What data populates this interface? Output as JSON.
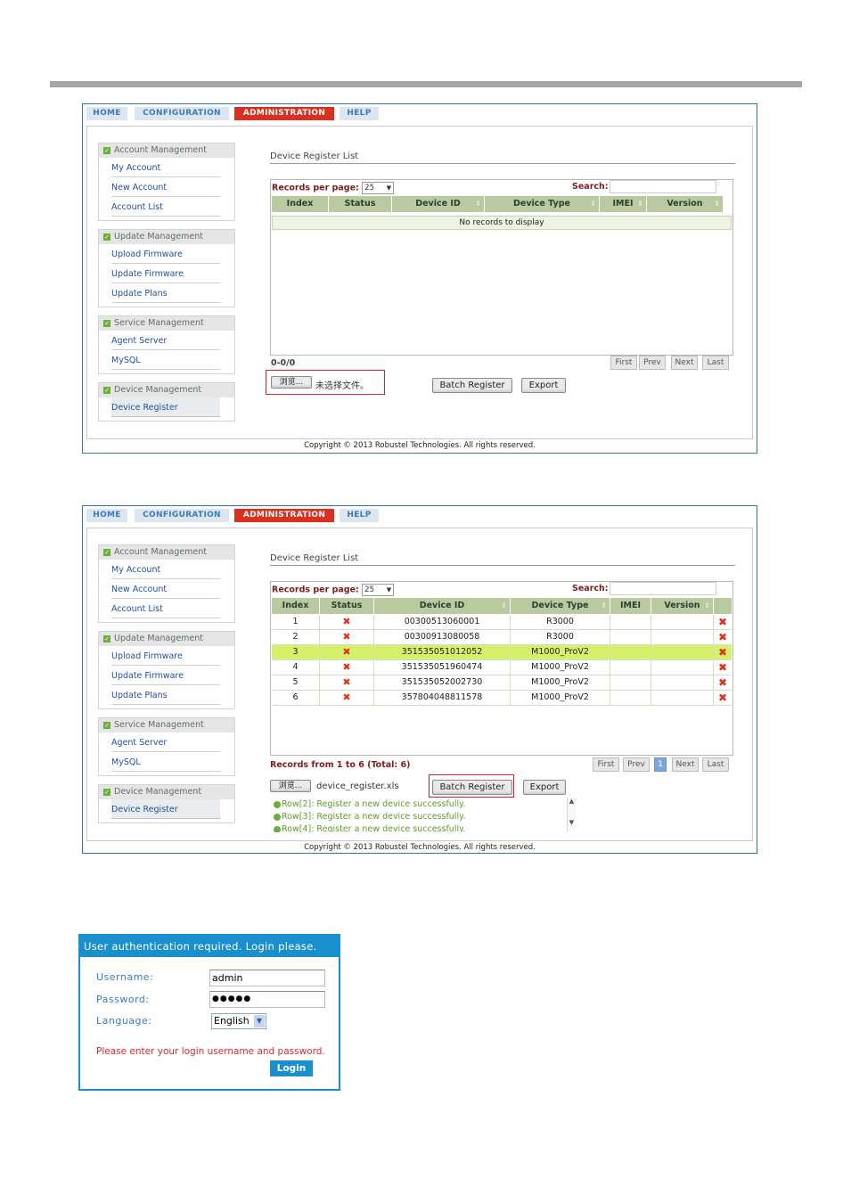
{
  "nav": {
    "home": "HOME",
    "configuration": "CONFIGURATION",
    "administration": "ADMINISTRATION",
    "help": "HELP"
  },
  "sidebar": {
    "account": {
      "title": "Account Management",
      "items": [
        "My Account",
        "New Account",
        "Account List"
      ]
    },
    "update": {
      "title": "Update Management",
      "items": [
        "Upload Firmware",
        "Update Firmware",
        "Update Plans"
      ]
    },
    "service": {
      "title": "Service Management",
      "items": [
        "Agent Server",
        "MySQL"
      ]
    },
    "device": {
      "title": "Device Management",
      "items": [
        "Device Register"
      ]
    }
  },
  "panel_title": "Device Register List",
  "records_per_page_label": "Records per page:",
  "records_per_page_value": "25",
  "search_label": "Search:",
  "columns": [
    "Index",
    "Status",
    "Device ID",
    "Device Type",
    "IMEI",
    "Version"
  ],
  "pager": {
    "first": "First",
    "prev": "Prev",
    "next": "Next",
    "last": "Last",
    "page": "1"
  },
  "browse_button": "浏览...",
  "batch_register": "Batch Register",
  "export": "Export",
  "copyright": "Copyright © 2013 Robustel Technologies. All rights reserved.",
  "shot1": {
    "no_records": "No records to display",
    "record_count": "0-0/0",
    "no_file": "未选择文件。"
  },
  "shot2": {
    "record_info": "Records from 1 to 6 (Total: 6)",
    "file_name": "device_register.xls",
    "rows": [
      {
        "index": "1",
        "device_id": "00300513060001",
        "device_type": "R3000",
        "imei": "",
        "version": ""
      },
      {
        "index": "2",
        "device_id": "00300913080058",
        "device_type": "R3000",
        "imei": "",
        "version": ""
      },
      {
        "index": "3",
        "device_id": "351535051012052",
        "device_type": "M1000_ProV2",
        "imei": "",
        "version": ""
      },
      {
        "index": "4",
        "device_id": "351535051960474",
        "device_type": "M1000_ProV2",
        "imei": "",
        "version": ""
      },
      {
        "index": "5",
        "device_id": "351535052002730",
        "device_type": "M1000_ProV2",
        "imei": "",
        "version": ""
      },
      {
        "index": "6",
        "device_id": "357804048811578",
        "device_type": "M1000_ProV2",
        "imei": "",
        "version": ""
      }
    ],
    "messages": [
      "Row[2]: Register a new device successfully.",
      "Row[3]: Register a new device successfully.",
      "Row[4]: Register a new device successfully."
    ]
  },
  "login": {
    "header": "User authentication required. Login please.",
    "username_label": "Username:",
    "username_value": "admin",
    "password_label": "Password:",
    "password_value": "●●●●●",
    "language_label": "Language:",
    "language_value": "English",
    "error": "Please enter your login username and password.",
    "button": "Login"
  },
  "colors": {
    "accent_red": "#d9301f",
    "login_blue": "#1a8fcd",
    "table_header": "#bacaa0",
    "highlight_row": "#d5f06a"
  }
}
